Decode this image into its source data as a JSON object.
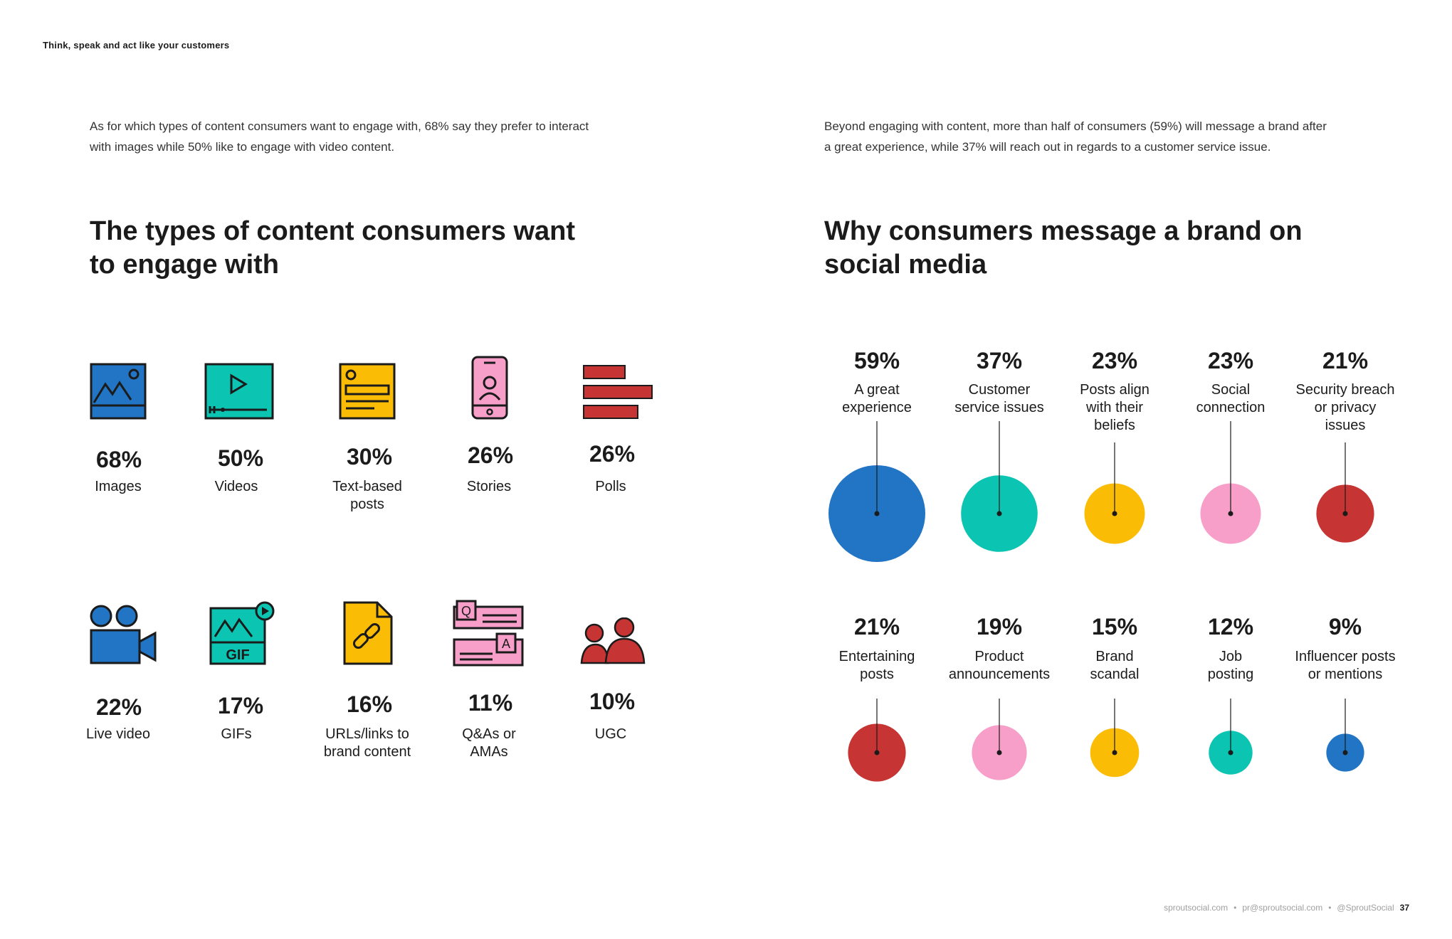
{
  "running_head": "Think, speak and act like your customers",
  "left": {
    "intro_line1": "As for which types of content consumers want to engage with, 68% say they prefer to interact",
    "intro_line2": "with images while 50% like to engage with video content.",
    "title_line1": "The types of content consumers want",
    "title_line2": "to engage with",
    "items": [
      {
        "pct": "68%",
        "label1": "Images",
        "label2": "",
        "icon": "image-icon"
      },
      {
        "pct": "50%",
        "label1": "Videos",
        "label2": "",
        "icon": "video-player-icon"
      },
      {
        "pct": "30%",
        "label1": "Text-based",
        "label2": "posts",
        "icon": "text-post-icon"
      },
      {
        "pct": "26%",
        "label1": "Stories",
        "label2": "",
        "icon": "phone-story-icon"
      },
      {
        "pct": "26%",
        "label1": "Polls",
        "label2": "",
        "icon": "poll-bars-icon"
      },
      {
        "pct": "22%",
        "label1": "Live video",
        "label2": "",
        "icon": "video-camera-icon"
      },
      {
        "pct": "17%",
        "label1": "GIFs",
        "label2": "",
        "icon": "gif-icon",
        "icon_text": "GIF"
      },
      {
        "pct": "16%",
        "label1": "URLs/links to",
        "label2": "brand content",
        "icon": "link-document-icon"
      },
      {
        "pct": "11%",
        "label1": "Q&As or",
        "label2": "AMAs",
        "icon": "qa-cards-icon",
        "icon_q": "Q",
        "icon_a": "A"
      },
      {
        "pct": "10%",
        "label1": "UGC",
        "label2": "",
        "icon": "users-icon"
      }
    ]
  },
  "right": {
    "intro_line1": "Beyond engaging with content, more than half of consumers (59%) will message a brand after",
    "intro_line2": "a great experience, while 37% will reach out in regards to a customer service issue.",
    "title_line1": "Why consumers message a brand on",
    "title_line2": "social media",
    "chart_data": {
      "type": "bubble",
      "title": "Why consumers message a brand on social media",
      "unit": "%",
      "categories": [
        "A great experience",
        "Customer service issues",
        "Posts align with their beliefs",
        "Social connection",
        "Security breach or privacy issues",
        "Entertaining posts",
        "Product announcements",
        "Brand scandal",
        "Job posting",
        "Influencer posts or mentions"
      ],
      "values": [
        59,
        37,
        23,
        23,
        21,
        21,
        19,
        15,
        12,
        9
      ],
      "items": [
        {
          "pct": "59%",
          "label": [
            "A great",
            "experience"
          ],
          "value": 59,
          "color": "#2175c4"
        },
        {
          "pct": "37%",
          "label": [
            "Customer",
            "service issues"
          ],
          "value": 37,
          "color": "#0bc4b1"
        },
        {
          "pct": "23%",
          "label": [
            "Posts align",
            "with their",
            "beliefs"
          ],
          "value": 23,
          "color": "#fbbc05"
        },
        {
          "pct": "23%",
          "label": [
            "Social",
            "connection"
          ],
          "value": 23,
          "color": "#f79fc9"
        },
        {
          "pct": "21%",
          "label": [
            "Security breach",
            "or privacy",
            "issues"
          ],
          "value": 21,
          "color": "#c63434"
        },
        {
          "pct": "21%",
          "label": [
            "Entertaining",
            "posts"
          ],
          "value": 21,
          "color": "#c63434"
        },
        {
          "pct": "19%",
          "label": [
            "Product",
            "announcements"
          ],
          "value": 19,
          "color": "#f79fc9"
        },
        {
          "pct": "15%",
          "label": [
            "Brand",
            "scandal"
          ],
          "value": 15,
          "color": "#fbbc05"
        },
        {
          "pct": "12%",
          "label": [
            "Job",
            "posting"
          ],
          "value": 12,
          "color": "#0bc4b1"
        },
        {
          "pct": "9%",
          "label": [
            "Influencer posts",
            "or mentions"
          ],
          "value": 9,
          "color": "#2175c4"
        }
      ]
    }
  },
  "colors": {
    "blue": "#2175c4",
    "teal": "#0bc4b1",
    "yellow": "#fbbc05",
    "pink": "#f79fc9",
    "red": "#c63434",
    "ink": "#1b1b1b"
  },
  "footer": {
    "site": "sproutsocial.com",
    "sep1": "•",
    "email": "pr@sproutsocial.com",
    "sep2": "•",
    "handle": "@SproutSocial",
    "page": "37"
  }
}
